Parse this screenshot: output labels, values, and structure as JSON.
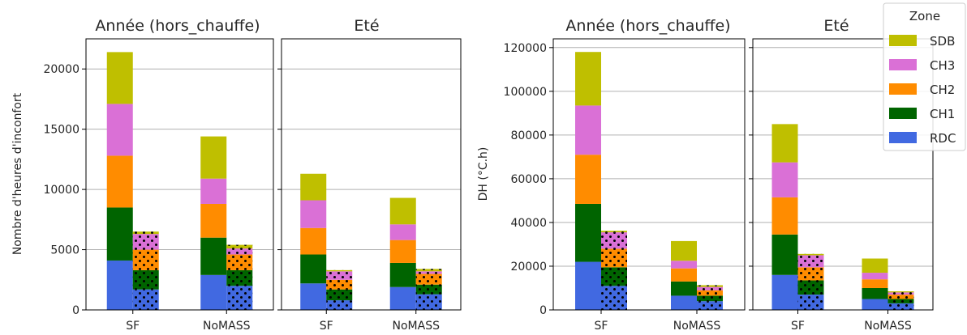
{
  "chart_data": [
    {
      "type": "bar",
      "title": "Année (hors_chauffe)",
      "ylabel": "Nombre d'heures d'inconfort",
      "xlabel": "",
      "categories": [
        "SF",
        "NoMASS"
      ],
      "yticks": [
        "0",
        "5000",
        "10000",
        "15000",
        "20000"
      ],
      "ylim": [
        0,
        22500
      ],
      "grid": "y",
      "stacked": true,
      "series_solid": [
        {
          "zone": "RDC",
          "values": [
            4100,
            2900
          ]
        },
        {
          "zone": "CH1",
          "values": [
            4400,
            3100
          ]
        },
        {
          "zone": "CH2",
          "values": [
            4300,
            2800
          ]
        },
        {
          "zone": "CH3",
          "values": [
            4300,
            2100
          ]
        },
        {
          "zone": "SDB",
          "values": [
            4300,
            3500
          ]
        }
      ],
      "series_dotted": [
        {
          "zone": "RDC",
          "values": [
            1700,
            2000
          ]
        },
        {
          "zone": "CH1",
          "values": [
            1600,
            1300
          ]
        },
        {
          "zone": "CH2",
          "values": [
            1700,
            1300
          ]
        },
        {
          "zone": "CH3",
          "values": [
            1300,
            500
          ]
        },
        {
          "zone": "SDB",
          "values": [
            200,
            300
          ]
        }
      ]
    },
    {
      "type": "bar",
      "title": "Eté",
      "categories": [
        "SF",
        "NoMASS"
      ],
      "ylim": [
        0,
        22500
      ],
      "grid": "y",
      "stacked": true,
      "series_solid": [
        {
          "zone": "RDC",
          "values": [
            2200,
            1900
          ]
        },
        {
          "zone": "CH1",
          "values": [
            2400,
            2000
          ]
        },
        {
          "zone": "CH2",
          "values": [
            2200,
            1900
          ]
        },
        {
          "zone": "CH3",
          "values": [
            2300,
            1300
          ]
        },
        {
          "zone": "SDB",
          "values": [
            2200,
            2200
          ]
        }
      ],
      "series_dotted": [
        {
          "zone": "RDC",
          "values": [
            800,
            1300
          ]
        },
        {
          "zone": "CH1",
          "values": [
            900,
            800
          ]
        },
        {
          "zone": "CH2",
          "values": [
            800,
            900
          ]
        },
        {
          "zone": "CH3",
          "values": [
            700,
            200
          ]
        },
        {
          "zone": "SDB",
          "values": [
            100,
            200
          ]
        }
      ]
    },
    {
      "type": "bar",
      "title": "Année (hors_chauffe)",
      "ylabel": "DH (°C.h)",
      "xlabel": "",
      "categories": [
        "SF",
        "NoMASS"
      ],
      "yticks": [
        "0",
        "20000",
        "40000",
        "60000",
        "80000",
        "100000",
        "120000"
      ],
      "ylim": [
        0,
        124000
      ],
      "grid": "y",
      "stacked": true,
      "series_solid": [
        {
          "zone": "RDC",
          "values": [
            22000,
            6500
          ]
        },
        {
          "zone": "CH1",
          "values": [
            26500,
            6500
          ]
        },
        {
          "zone": "CH2",
          "values": [
            22500,
            6000
          ]
        },
        {
          "zone": "CH3",
          "values": [
            22500,
            3500
          ]
        },
        {
          "zone": "SDB",
          "values": [
            24500,
            9000
          ]
        }
      ],
      "series_dotted": [
        {
          "zone": "RDC",
          "values": [
            11000,
            4000
          ]
        },
        {
          "zone": "CH1",
          "values": [
            8500,
            2500
          ]
        },
        {
          "zone": "CH2",
          "values": [
            8500,
            2500
          ]
        },
        {
          "zone": "CH3",
          "values": [
            7500,
            1500
          ]
        },
        {
          "zone": "SDB",
          "values": [
            700,
            800
          ]
        }
      ]
    },
    {
      "type": "bar",
      "title": "Eté",
      "categories": [
        "SF",
        "NoMASS"
      ],
      "ylim": [
        0,
        124000
      ],
      "grid": "y",
      "stacked": true,
      "series_solid": [
        {
          "zone": "RDC",
          "values": [
            16000,
            5000
          ]
        },
        {
          "zone": "CH1",
          "values": [
            18500,
            5000
          ]
        },
        {
          "zone": "CH2",
          "values": [
            17000,
            4000
          ]
        },
        {
          "zone": "CH3",
          "values": [
            16000,
            3000
          ]
        },
        {
          "zone": "SDB",
          "values": [
            17500,
            6500
          ]
        }
      ],
      "series_dotted": [
        {
          "zone": "RDC",
          "values": [
            7000,
            3000
          ]
        },
        {
          "zone": "CH1",
          "values": [
            6500,
            2000
          ]
        },
        {
          "zone": "CH2",
          "values": [
            6000,
            2000
          ]
        },
        {
          "zone": "CH3",
          "values": [
            5500,
            1000
          ]
        },
        {
          "zone": "SDB",
          "values": [
            600,
            500
          ]
        }
      ]
    }
  ],
  "legend": {
    "title": "Zone",
    "placement": "top-right",
    "items": [
      {
        "label": "SDB",
        "color": "#bfbf00"
      },
      {
        "label": "CH3",
        "color": "#da70d6"
      },
      {
        "label": "CH2",
        "color": "#ff8c00"
      },
      {
        "label": "CH1",
        "color": "#006400"
      },
      {
        "label": "RDC",
        "color": "#4169e1"
      }
    ]
  },
  "colors": {
    "RDC": "#4169e1",
    "CH1": "#006400",
    "CH2": "#ff8c00",
    "CH3": "#da70d6",
    "SDB": "#bfbf00",
    "grid": "#b0b0b0"
  }
}
